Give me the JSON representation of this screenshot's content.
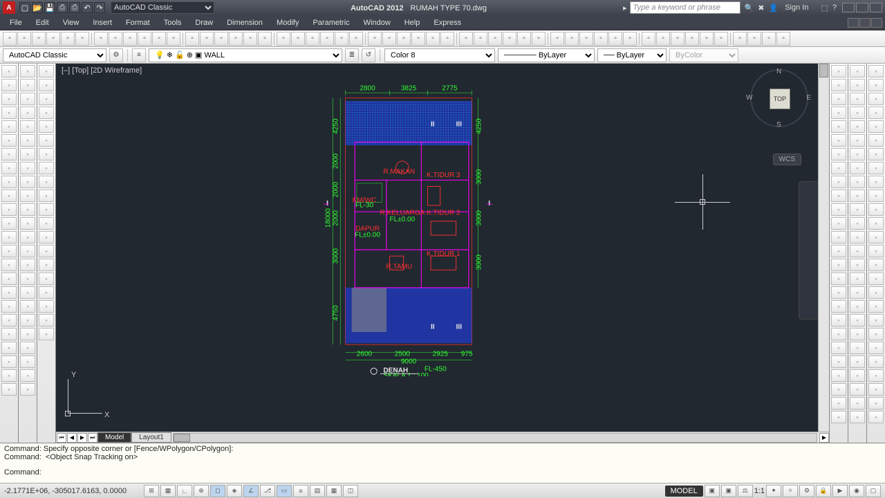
{
  "app": {
    "name": "AutoCAD 2012",
    "filename": "RUMAH TYPE 70.dwg",
    "logo_text": "A"
  },
  "titlebar": {
    "workspace": "AutoCAD Classic",
    "search_placeholder": "Type a keyword or phrase",
    "signin": "Sign In"
  },
  "menus": [
    "File",
    "Edit",
    "View",
    "Insert",
    "Format",
    "Tools",
    "Draw",
    "Dimension",
    "Modify",
    "Parametric",
    "Window",
    "Help",
    "Express"
  ],
  "layer_toolbar": {
    "style_combo": "AutoCAD Classic",
    "layer_name": "WALL",
    "color_combo": "Color 8",
    "linetype": "ByLayer",
    "lineweight": "ByLayer",
    "plotstyle": "ByColor"
  },
  "viewport_label": "[–] [Top] [2D Wireframe]",
  "viewcube": {
    "top": "TOP",
    "n": "N",
    "s": "S",
    "e": "E",
    "w": "W",
    "wcs": "WCS"
  },
  "tabs": {
    "model": "Model",
    "layout1": "Layout1"
  },
  "command": {
    "line1": "Command: Specify opposite corner or [Fence/WPolygon/CPolygon]:",
    "line2": "Command:  <Object Snap Tracking on>",
    "line3": "Command:"
  },
  "status": {
    "coords": "-2.1771E+06, -305017.6163, 0.0000",
    "model_label": "MODEL",
    "scale": "1:1"
  },
  "drawing": {
    "title": "DENAH",
    "scale_text": "SKALA 1 : 100",
    "fl_text": "FL-450",
    "dims_top": [
      "2800",
      "3825",
      "2775"
    ],
    "dims_left": [
      "4250",
      "2000",
      "2000",
      "2000",
      "3000",
      "4750",
      "18000"
    ],
    "dims_right": [
      "4250",
      "3000",
      "3000",
      "3000"
    ],
    "dims_bottom": [
      "2600",
      "2500",
      "2925",
      "975",
      "9000"
    ],
    "rooms": [
      "R.MAKAN",
      "K.TIDUR 3",
      "R.KELUARGA",
      "K.TIDUR 2",
      "DAPUR",
      "KM/WC",
      "R.TAMU",
      "K.TIDUR 1",
      "FL±0.00",
      "FL±0.00",
      "FL-30"
    ],
    "section_marks": [
      "I",
      "I",
      "II",
      "II",
      "III",
      "III"
    ],
    "colors": {
      "wall": "#ff3030",
      "dim": "#30ff30",
      "hatch1": "#2040ff",
      "hatch2": "#ff00ff",
      "hatch3": "#00ffff",
      "text": "#30ff30",
      "white": "#e8e8e8",
      "bg": "#212830"
    }
  }
}
